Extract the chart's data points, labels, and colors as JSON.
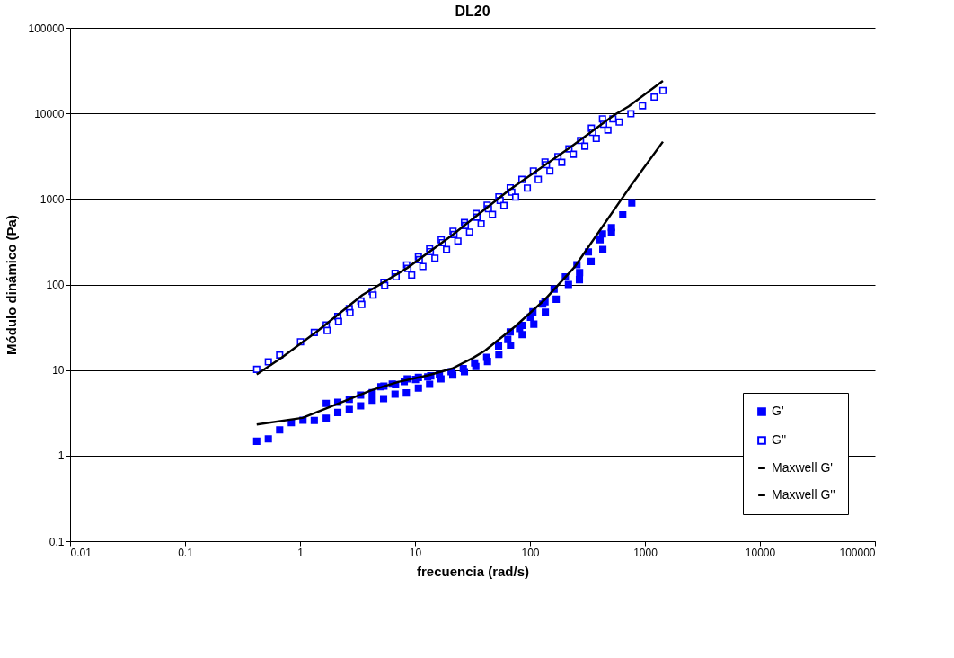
{
  "chart_data": {
    "type": "scatter",
    "title": "DL20",
    "xlabel": "frecuencia (rad/s)",
    "ylabel": "Módulo dinámico (Pa)",
    "log": "xy",
    "grid": "y",
    "legend": "bottom right",
    "xlim": [
      0.01,
      100000
    ],
    "xticks": [
      0.01,
      0.1,
      1,
      10,
      100,
      1000,
      10000,
      100000
    ],
    "ylim": [
      0.1,
      100000
    ],
    "yticks": [
      0.1,
      1,
      10,
      100,
      1000,
      10000,
      100000
    ],
    "series": [
      {
        "name": "G'",
        "marker": "square",
        "color": "#0000ff",
        "x": [
          0.42,
          0.53,
          0.665,
          0.84,
          1.06,
          1.33,
          1.69,
          1.69,
          2.13,
          2.13,
          2.68,
          2.68,
          3.36,
          3.36,
          4.24,
          4.24,
          5.33,
          5.05,
          5.36,
          6.7,
          6.34,
          6.77,
          8.4,
          8.06,
          8.55,
          10.7,
          10.1,
          10.7,
          13.4,
          12.9,
          13.7,
          16.3,
          16.8,
          20.6,
          21.3,
          26.3,
          26.9,
          33.0,
          33.8,
          42.0,
          42.7,
          53.3,
          53.6,
          64.1,
          67.7,
          67.3,
          81.1,
          85.5,
          85.5,
          101,
          106,
          108,
          129,
          135,
          136,
          162,
          169,
          203,
          216,
          256,
          270,
          269,
          322,
          340,
          407,
          427,
          430,
          511,
          511,
          641,
          768
        ],
        "values": [
          1.47,
          1.57,
          2.0,
          2.43,
          2.59,
          2.57,
          2.74,
          4.07,
          3.19,
          4.2,
          3.46,
          4.56,
          3.81,
          5.09,
          4.45,
          5.44,
          4.62,
          6.39,
          6.49,
          5.22,
          6.87,
          6.76,
          5.4,
          7.32,
          7.87,
          6.14,
          7.76,
          8.2,
          6.81,
          8.34,
          8.55,
          8.82,
          7.87,
          9.55,
          8.75,
          10.4,
          9.55,
          12.1,
          11.0,
          14.1,
          12.6,
          19.1,
          15.3,
          22.8,
          19.5,
          27.9,
          30.5,
          33.3,
          26.0,
          41.5,
          48.0,
          34.4,
          59.2,
          63.0,
          47.6,
          88.3,
          67.3,
          123,
          99.8,
          170,
          138,
          114,
          240,
          186,
          334,
          390,
          256,
          462,
          406,
          653,
          901
        ]
      },
      {
        "name": "G''",
        "marker": "square",
        "color": "#0000ff",
        "x": [
          0.42,
          0.53,
          0.665,
          1.01,
          1.33,
          1.69,
          1.72,
          2.13,
          2.16,
          2.68,
          2.72,
          3.38,
          3.44,
          4.24,
          4.32,
          5.36,
          5.45,
          6.7,
          6.85,
          8.46,
          8.66,
          9.35,
          10.7,
          10.9,
          11.7,
          13.4,
          13.6,
          14.9,
          16.9,
          17.3,
          18.8,
          21.4,
          21.8,
          23.6,
          26.9,
          27.4,
          29.8,
          34.0,
          34.6,
          37.6,
          42.4,
          43.5,
          47.2,
          53.6,
          55.0,
          59.3,
          67.3,
          69.4,
          75.0,
          85.1,
          94.8,
          107,
          118,
          135,
          139,
          149,
          175,
          189,
          218,
          238,
          275,
          300,
          342,
          351,
          377,
          427,
          437,
          476,
          526,
          597,
          754,
          953,
          1203,
          1432
        ],
        "values": [
          10.2,
          12.5,
          15.0,
          21.4,
          27.5,
          33.6,
          29.0,
          42.2,
          37.0,
          52.4,
          46.8,
          64.1,
          58.6,
          83.0,
          75.3,
          106,
          97.3,
          135,
          123,
          169,
          154,
          129,
          211,
          195,
          162,
          262,
          242,
          203,
          334,
          308,
          256,
          420,
          384,
          322,
          530,
          489,
          410,
          675,
          612,
          513,
          847,
          769,
          658,
          1060,
          962,
          838,
          1350,
          1200,
          1050,
          1690,
          1340,
          2120,
          1690,
          2700,
          2510,
          2120,
          3120,
          2680,
          3850,
          3330,
          4830,
          4140,
          6710,
          6000,
          5100,
          8630,
          7460,
          6390,
          8630,
          7940,
          9900,
          12300,
          15500,
          18500
        ]
      },
      {
        "name": "Maxwell G'",
        "type": "line",
        "marker": "none",
        "color": "#000000",
        "line_style": "solid",
        "x": [
          0.42,
          1.05,
          1.91,
          4.17,
          7.14,
          13.0,
          21.0,
          32.0,
          40.7,
          74.1,
          135,
          246,
          397,
          723,
          1432
        ],
        "values": [
          2.31,
          2.76,
          3.81,
          5.8,
          7.26,
          8.67,
          10.4,
          13.9,
          16.9,
          32.3,
          66.8,
          162,
          413,
          1320,
          4670
        ]
      },
      {
        "name": "Maxwell G''",
        "type": "line",
        "marker": "none",
        "color": "#000000",
        "line_style": "solid",
        "x": [
          0.42,
          0.69,
          1.42,
          3.48,
          8.55,
          21.0,
          65.8,
          218,
          536,
          723,
          1432
        ],
        "values": [
          8.89,
          13.9,
          28.6,
          75.3,
          156,
          377,
          1270,
          3910,
          9500,
          12100,
          24000
        ]
      }
    ]
  }
}
